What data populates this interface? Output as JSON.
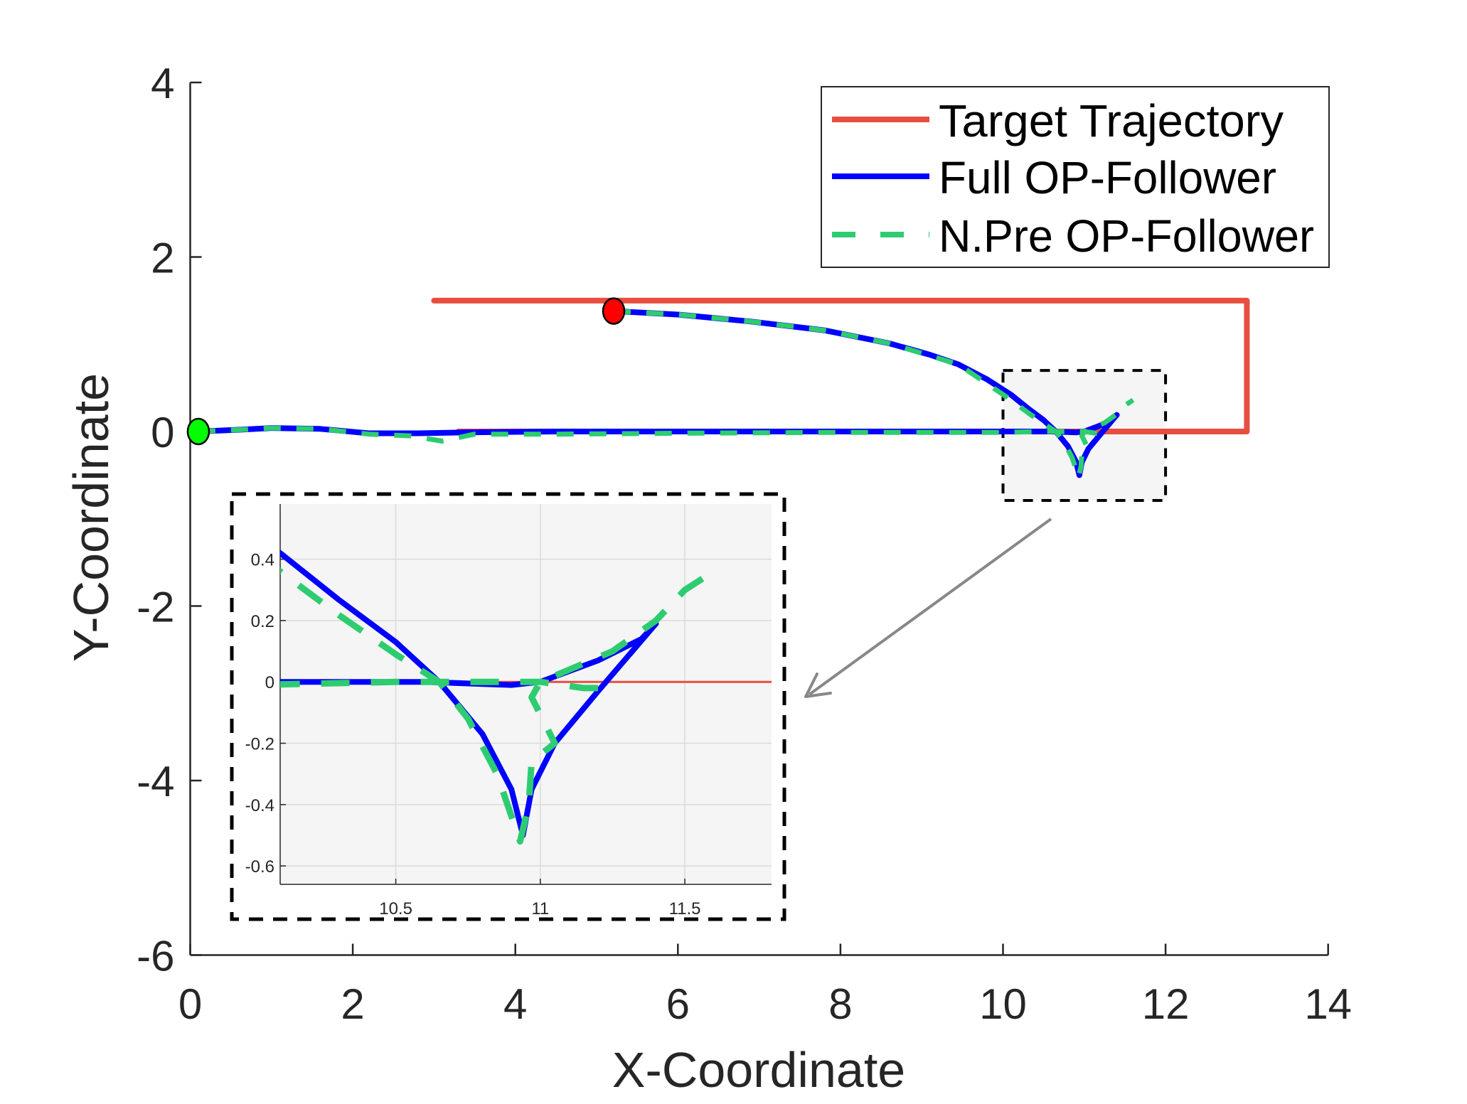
{
  "chart_data": {
    "type": "line",
    "title": "",
    "xlabel": "X-Coordinate",
    "ylabel": "Y-Coordinate",
    "xlim": [
      0,
      14
    ],
    "ylim": [
      -6,
      4
    ],
    "xticks": [
      0,
      2,
      4,
      6,
      8,
      10,
      12,
      14
    ],
    "yticks": [
      -6,
      -4,
      -2,
      0,
      2,
      4
    ],
    "grid": false,
    "legend_position": "upper right",
    "legend": [
      "Target Trajectory",
      "Full OP-Follower",
      "N.Pre OP-Follower"
    ],
    "series": [
      {
        "name": "Target Trajectory",
        "color": "#E84E40",
        "style": "solid",
        "points": [
          [
            3.0,
            1.5
          ],
          [
            13.0,
            1.5
          ],
          [
            13.0,
            0.0
          ],
          [
            3.3,
            0.0
          ]
        ]
      },
      {
        "name": "Full OP-Follower",
        "color": "#0000FF",
        "style": "solid",
        "segments": [
          [
            [
              0.1,
              0.0
            ],
            [
              0.6,
              0.02
            ],
            [
              1.0,
              0.04
            ],
            [
              1.6,
              0.03
            ],
            [
              2.2,
              -0.02
            ],
            [
              2.8,
              -0.02
            ],
            [
              3.4,
              -0.01
            ],
            [
              4.5,
              0.0
            ],
            [
              6.0,
              0.0
            ],
            [
              8.0,
              0.0
            ],
            [
              10.0,
              0.0
            ],
            [
              10.6,
              0.0
            ],
            [
              10.9,
              -0.01
            ],
            [
              11.0,
              0.0
            ],
            [
              11.2,
              0.07
            ],
            [
              11.35,
              0.14
            ],
            [
              11.4,
              0.19
            ]
          ],
          [
            [
              5.21,
              1.38
            ],
            [
              5.4,
              1.37
            ],
            [
              6.0,
              1.34
            ],
            [
              6.9,
              1.26
            ],
            [
              7.8,
              1.16
            ],
            [
              8.6,
              1.01
            ],
            [
              9.1,
              0.88
            ],
            [
              9.45,
              0.77
            ],
            [
              9.8,
              0.6
            ],
            [
              10.1,
              0.42
            ],
            [
              10.3,
              0.27
            ],
            [
              10.5,
              0.13
            ],
            [
              10.65,
              0.0
            ],
            [
              10.8,
              -0.17
            ],
            [
              10.9,
              -0.35
            ],
            [
              10.94,
              -0.5
            ],
            [
              10.97,
              -0.35
            ],
            [
              11.05,
              -0.2
            ],
            [
              11.2,
              -0.03
            ],
            [
              11.3,
              0.08
            ],
            [
              11.4,
              0.19
            ]
          ]
        ]
      },
      {
        "name": "N.Pre OP-Follower",
        "color": "#2ECC71",
        "style": "dashed",
        "segments": [
          [
            [
              0.1,
              0.0
            ],
            [
              0.6,
              0.02
            ],
            [
              1.0,
              0.04
            ],
            [
              1.6,
              0.03
            ],
            [
              2.2,
              -0.03
            ],
            [
              2.7,
              -0.05
            ],
            [
              3.1,
              -0.11
            ],
            [
              3.5,
              -0.03
            ],
            [
              4.5,
              -0.03
            ],
            [
              6.0,
              -0.02
            ],
            [
              8.0,
              -0.01
            ],
            [
              10.0,
              -0.01
            ],
            [
              10.5,
              0.0
            ],
            [
              10.9,
              0.0
            ],
            [
              11.0,
              0.0
            ],
            [
              11.15,
              -0.02
            ],
            [
              11.27,
              -0.02
            ]
          ],
          [
            [
              5.21,
              1.38
            ],
            [
              5.4,
              1.37
            ],
            [
              6.0,
              1.34
            ],
            [
              6.9,
              1.26
            ],
            [
              7.8,
              1.16
            ],
            [
              8.6,
              1.01
            ],
            [
              9.45,
              0.77
            ],
            [
              10.1,
              0.36
            ],
            [
              10.3,
              0.22
            ],
            [
              10.5,
              0.09
            ],
            [
              10.65,
              0.0
            ],
            [
              10.75,
              -0.12
            ],
            [
              10.85,
              -0.3
            ],
            [
              10.93,
              -0.52
            ],
            [
              10.96,
              -0.4
            ],
            [
              10.97,
              -0.26
            ],
            [
              11.05,
              -0.2
            ],
            [
              10.97,
              -0.05
            ],
            [
              11.0,
              0.0
            ],
            [
              11.1,
              0.04
            ],
            [
              11.25,
              0.1
            ],
            [
              11.4,
              0.2
            ],
            [
              11.5,
              0.3
            ],
            [
              11.6,
              0.36
            ]
          ]
        ]
      }
    ],
    "markers": [
      {
        "name": "start",
        "x": 0.1,
        "y": 0.0,
        "color": "#00FF00"
      },
      {
        "name": "follower-start",
        "x": 5.21,
        "y": 1.38,
        "color": "#FF0000"
      }
    ],
    "zoom_region": {
      "x": [
        10.0,
        12.0
      ],
      "y": [
        -0.79,
        0.7
      ]
    },
    "inset": {
      "xlim": [
        10.1,
        11.8
      ],
      "ylim": [
        -0.66,
        0.58
      ],
      "xticks": [
        10.5,
        11,
        11.5
      ],
      "xtick_labels": [
        "10.5",
        "11",
        "11.5"
      ],
      "yticks": [
        -0.6,
        -0.4,
        -0.2,
        0,
        0.2,
        0.4
      ],
      "ytick_labels": [
        "-0.6",
        "-0.4",
        "-0.2",
        "0",
        "0.2",
        "0.4"
      ],
      "grid": true,
      "background": "#F5F5F5"
    }
  },
  "axes": {
    "xtick_labels": [
      "0",
      "2",
      "4",
      "6",
      "8",
      "10",
      "12",
      "14"
    ],
    "ytick_labels": [
      "-6",
      "-4",
      "-2",
      "0",
      "2",
      "4"
    ],
    "xlabel": "X-Coordinate",
    "ylabel": "Y-Coordinate"
  },
  "legend": {
    "items": [
      {
        "label": "Target Trajectory",
        "color": "#E84E40",
        "style": "solid"
      },
      {
        "label": "Full OP-Follower",
        "color": "#0000FF",
        "style": "solid"
      },
      {
        "label": "N.Pre OP-Follower",
        "color": "#2ECC71",
        "style": "dashed"
      }
    ]
  }
}
